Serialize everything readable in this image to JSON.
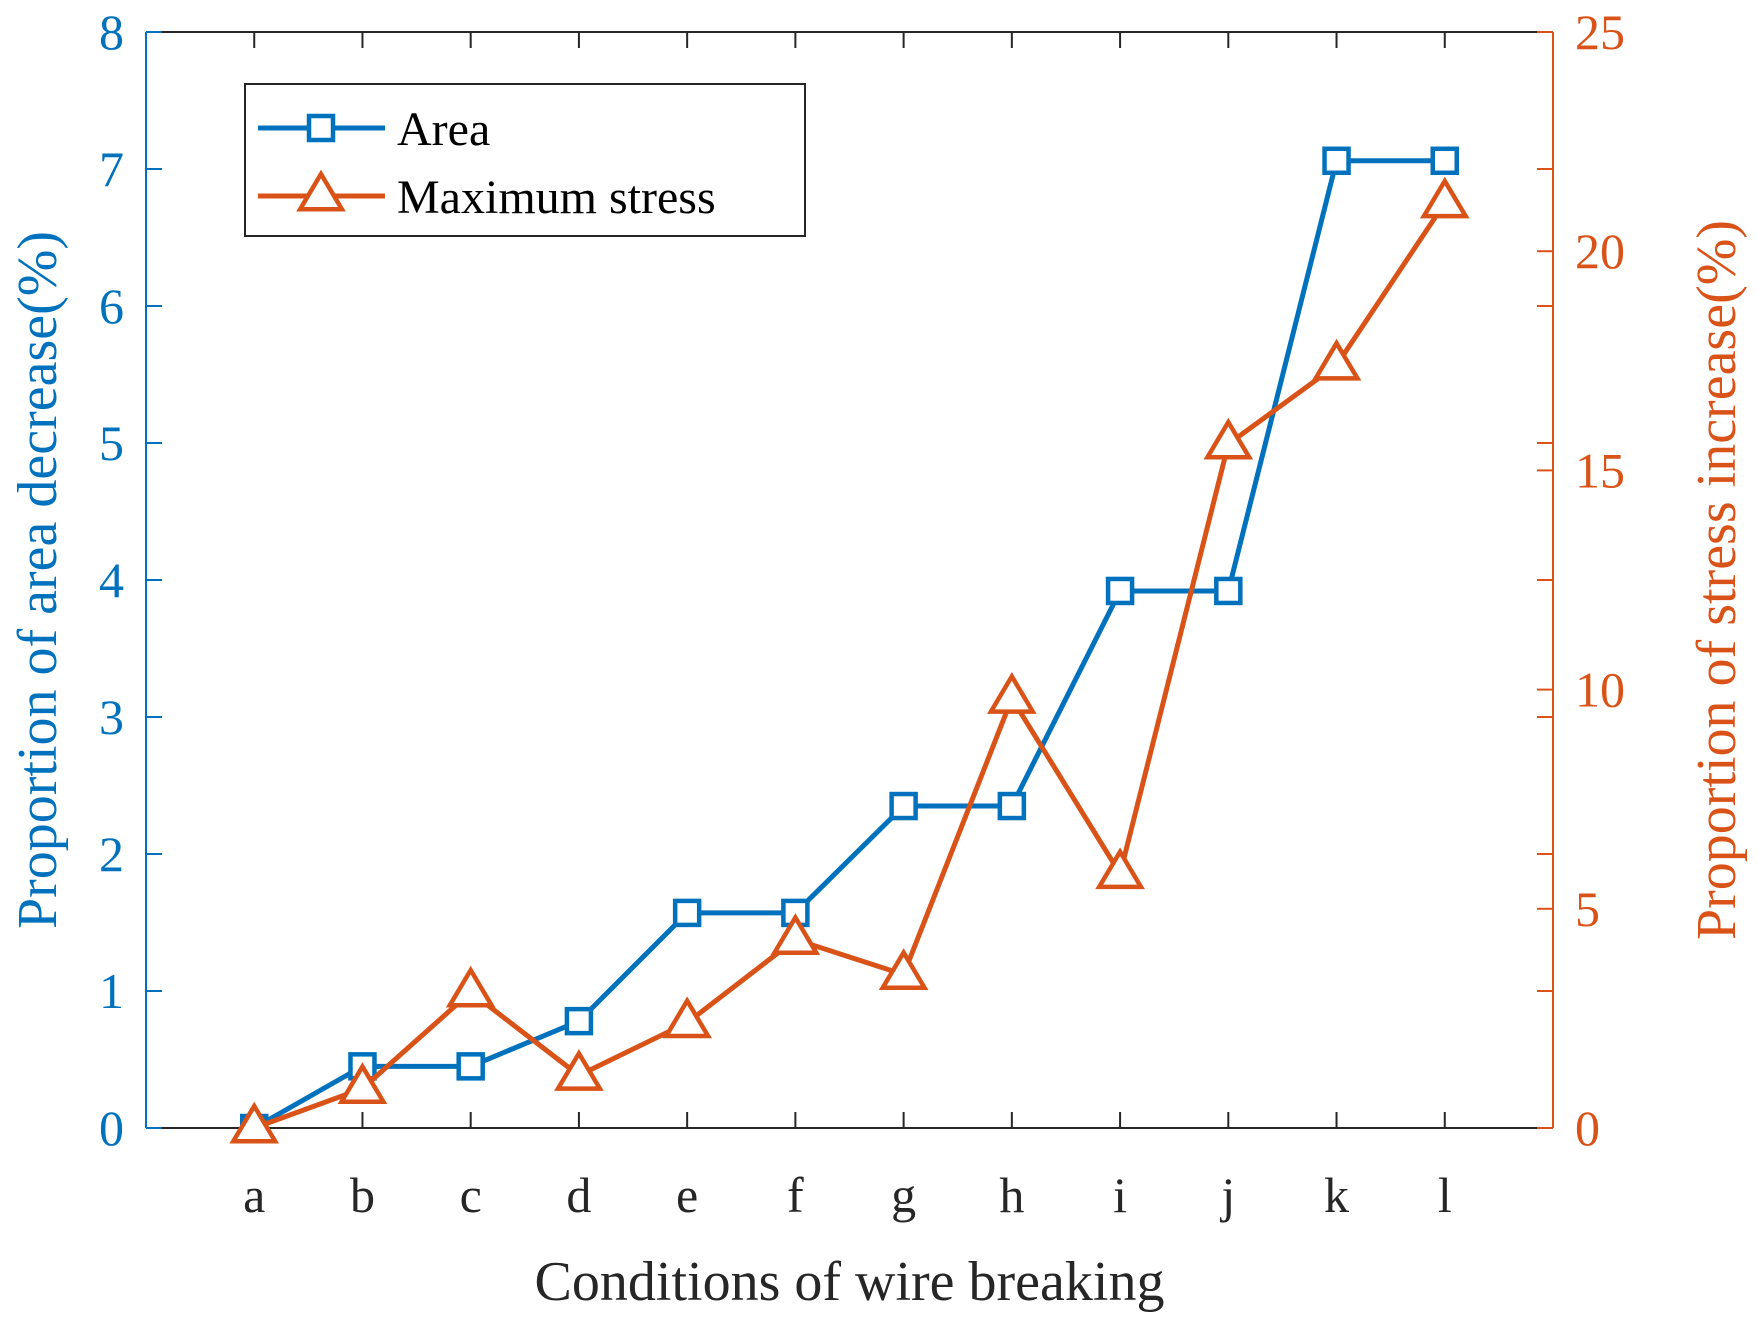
{
  "chart_data": {
    "type": "line",
    "categories": [
      "a",
      "b",
      "c",
      "d",
      "e",
      "f",
      "g",
      "h",
      "i",
      "j",
      "k",
      "l"
    ],
    "xlabel": "Conditions of wire breaking",
    "y_left": {
      "label": "Proportion of area decrease(%)",
      "lim": [
        0,
        8
      ],
      "ticks": [
        "0",
        "1",
        "2",
        "3",
        "4",
        "5",
        "6",
        "7",
        "8"
      ],
      "color": "#0072BD"
    },
    "y_right": {
      "label": "Proportion of stress increase(%)",
      "lim": [
        0,
        25
      ],
      "ticks": [
        "0",
        "5",
        "10",
        "15",
        "20",
        "25"
      ],
      "color": "#D95319"
    },
    "series": [
      {
        "name": "Area",
        "axis": "left",
        "marker": "square",
        "color": "#0072BD",
        "values": [
          0,
          0.45,
          0.45,
          0.78,
          1.57,
          1.57,
          2.35,
          2.35,
          3.92,
          3.92,
          7.06,
          7.06
        ]
      },
      {
        "name": "Maximum stress",
        "axis": "right",
        "marker": "triangle",
        "color": "#D95319",
        "values": [
          0,
          0.9,
          3.1,
          1.2,
          2.4,
          4.3,
          3.5,
          9.8,
          5.8,
          15.6,
          17.4,
          21.1
        ]
      }
    ],
    "legend_position": "top-left",
    "grid": false
  }
}
